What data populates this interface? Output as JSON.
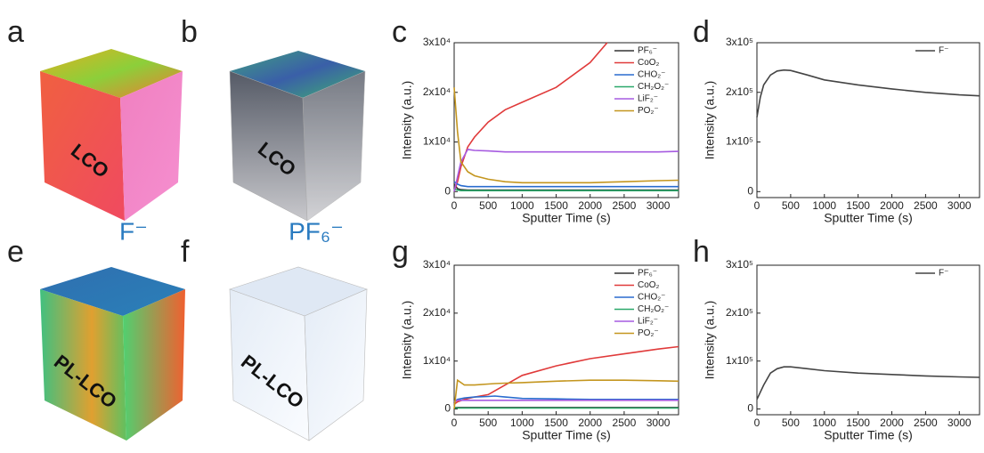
{
  "panel_labels": [
    "a",
    "b",
    "c",
    "d",
    "e",
    "f",
    "g",
    "h"
  ],
  "image_labels": {
    "a": "LCO",
    "b": "LCO",
    "e": "PL-LCO",
    "f": "PL-LCO",
    "row_ion_1": "F⁻",
    "row_ion_2": "PF₆⁻"
  },
  "chart_data": [
    {
      "type": "line",
      "x_label": "Sputter Time (s)",
      "y_label": "Intensity (a.u.)",
      "legend": "upper right",
      "x": [
        0,
        50,
        100,
        200,
        300,
        500,
        750,
        1000,
        1500,
        2000,
        2250,
        2500,
        3000,
        3300
      ],
      "xlim": [
        0,
        3300
      ],
      "xticks": [
        0,
        500,
        1000,
        1500,
        2000,
        2500,
        3000
      ],
      "ylim": [
        -1200,
        30000
      ],
      "yticks": [
        0,
        {
          "value": 10000,
          "label": "1x10⁴"
        },
        {
          "value": 20000,
          "label": "2x10⁴"
        },
        {
          "value": 30000,
          "label": "3x10⁴"
        }
      ],
      "series": [
        {
          "name": "PF₆⁻",
          "color": "#333333",
          "values": [
            1500,
            600,
            400,
            300,
            300,
            300,
            300,
            300,
            300,
            300,
            300,
            300,
            300,
            300
          ]
        },
        {
          "name": "CoO₂",
          "color": "#e03a3a",
          "values": [
            0,
            2000,
            5000,
            9000,
            11000,
            14000,
            16500,
            18000,
            21000,
            26000,
            30000,
            null,
            null,
            null
          ]
        },
        {
          "name": "CHO₂⁻",
          "color": "#2a6ccf",
          "values": [
            2000,
            1500,
            1200,
            1000,
            1000,
            1000,
            1000,
            1000,
            1000,
            1000,
            1000,
            1000,
            1000,
            1000
          ]
        },
        {
          "name": "CH₂O₂⁻",
          "color": "#2aa86a",
          "values": [
            500,
            300,
            200,
            200,
            200,
            200,
            200,
            200,
            200,
            200,
            200,
            200,
            200,
            200
          ]
        },
        {
          "name": "LiF₂⁻",
          "color": "#a65be0",
          "values": [
            0,
            3000,
            6000,
            8500,
            8300,
            8200,
            8000,
            8000,
            8000,
            8000,
            8000,
            8000,
            8000,
            8100
          ]
        },
        {
          "name": "PO₂⁻",
          "color": "#c4961f",
          "values": [
            21000,
            12000,
            6000,
            4000,
            3200,
            2500,
            2000,
            1800,
            1800,
            1800,
            1900,
            2000,
            2200,
            2300
          ]
        }
      ]
    },
    {
      "type": "line",
      "x_label": "Sputter Time (s)",
      "y_label": "Intensity (a.u.)",
      "legend": "upper right",
      "x": [
        0,
        50,
        100,
        200,
        300,
        400,
        500,
        750,
        1000,
        1500,
        2000,
        2500,
        3000,
        3300
      ],
      "xlim": [
        0,
        3300
      ],
      "xticks": [
        0,
        500,
        1000,
        1500,
        2000,
        2500,
        3000
      ],
      "ylim": [
        -12000,
        300000
      ],
      "yticks": [
        0,
        {
          "value": 100000,
          "label": "1x10⁵"
        },
        {
          "value": 200000,
          "label": "2x10⁵"
        },
        {
          "value": 300000,
          "label": "3x10⁵"
        }
      ],
      "series": [
        {
          "name": "F⁻",
          "color": "#444444",
          "values": [
            150000,
            190000,
            215000,
            235000,
            243000,
            245000,
            244000,
            235000,
            225000,
            215000,
            207000,
            200000,
            195000,
            193000
          ]
        }
      ]
    },
    {
      "type": "line",
      "x_label": "Sputter Time (s)",
      "y_label": "Intensity (a.u.)",
      "legend": "upper right",
      "x": [
        0,
        50,
        150,
        300,
        500,
        600,
        750,
        1000,
        1500,
        2000,
        2500,
        3000,
        3300
      ],
      "xlim": [
        0,
        3300
      ],
      "xticks": [
        0,
        500,
        1000,
        1500,
        2000,
        2500,
        3000
      ],
      "ylim": [
        -1200,
        30000
      ],
      "yticks": [
        0,
        {
          "value": 10000,
          "label": "1x10⁴"
        },
        {
          "value": 20000,
          "label": "2x10⁴"
        },
        {
          "value": 30000,
          "label": "3x10⁴"
        }
      ],
      "series": [
        {
          "name": "PF₆⁻",
          "color": "#333333",
          "values": [
            300,
            300,
            300,
            300,
            300,
            300,
            300,
            300,
            300,
            300,
            300,
            300,
            300
          ]
        },
        {
          "name": "CoO₂",
          "color": "#e03a3a",
          "values": [
            1000,
            1500,
            2000,
            2500,
            3000,
            3800,
            5000,
            7000,
            9000,
            10500,
            11500,
            12500,
            13000
          ]
        },
        {
          "name": "CHO₂⁻",
          "color": "#2a6ccf",
          "values": [
            1500,
            2000,
            2300,
            2500,
            2600,
            2700,
            2500,
            2200,
            2100,
            2000,
            2000,
            2000,
            2000
          ]
        },
        {
          "name": "CH₂O₂⁻",
          "color": "#2aa86a",
          "values": [
            300,
            200,
            200,
            200,
            200,
            200,
            200,
            200,
            200,
            200,
            200,
            200,
            200
          ]
        },
        {
          "name": "LiF₂⁻",
          "color": "#a65be0",
          "values": [
            1500,
            1800,
            1800,
            1800,
            1800,
            1800,
            1800,
            1800,
            1800,
            1800,
            1800,
            1800,
            1800
          ]
        },
        {
          "name": "PO₂⁻",
          "color": "#c4961f",
          "values": [
            0,
            6000,
            5000,
            5000,
            5200,
            5300,
            5400,
            5500,
            5800,
            6000,
            6000,
            5900,
            5800
          ]
        }
      ]
    },
    {
      "type": "line",
      "x_label": "Sputter Time (s)",
      "y_label": "Intensity (a.u.)",
      "legend": "upper right",
      "x": [
        0,
        50,
        100,
        200,
        300,
        400,
        500,
        750,
        1000,
        1500,
        2000,
        2500,
        3000,
        3300
      ],
      "xlim": [
        0,
        3300
      ],
      "xticks": [
        0,
        500,
        1000,
        1500,
        2000,
        2500,
        3000
      ],
      "ylim": [
        -12000,
        300000
      ],
      "yticks": [
        0,
        {
          "value": 100000,
          "label": "1x10⁵"
        },
        {
          "value": 200000,
          "label": "2x10⁵"
        },
        {
          "value": 300000,
          "label": "3x10⁵"
        }
      ],
      "series": [
        {
          "name": "F⁻",
          "color": "#444444",
          "values": [
            20000,
            35000,
            50000,
            75000,
            84000,
            88000,
            88000,
            84000,
            80000,
            75000,
            72000,
            69000,
            67000,
            66000
          ]
        }
      ]
    }
  ]
}
